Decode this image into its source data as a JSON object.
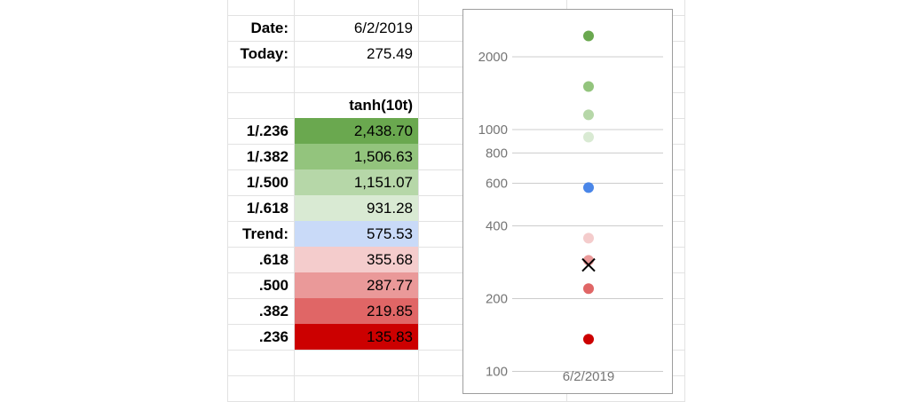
{
  "sheet": {
    "date_label": "Date:",
    "date_value": "6/2/2019",
    "today_label": "Today:",
    "today_value": "275.49",
    "column_header": "tanh(10t)",
    "rows": [
      {
        "label": "1/.236",
        "value": "2,438.70",
        "bg": "#6aa84f",
        "fg": "#000000"
      },
      {
        "label": "1/.382",
        "value": "1,506.63",
        "bg": "#93c47d",
        "fg": "#000000"
      },
      {
        "label": "1/.500",
        "value": "1,151.07",
        "bg": "#b6d7a8",
        "fg": "#000000"
      },
      {
        "label": "1/.618",
        "value": "931.28",
        "bg": "#d9ead3",
        "fg": "#000000"
      },
      {
        "label": "Trend:",
        "value": "575.53",
        "bg": "#c9daf8",
        "fg": "#000000"
      },
      {
        "label": ".618",
        "value": "355.68",
        "bg": "#f4cccc",
        "fg": "#000000"
      },
      {
        "label": ".500",
        "value": "287.77",
        "bg": "#ea9999",
        "fg": "#000000"
      },
      {
        "label": ".382",
        "value": "219.85",
        "bg": "#e06666",
        "fg": "#000000"
      },
      {
        "label": ".236",
        "value": "135.83",
        "bg": "#cc0000",
        "fg": "#000000"
      }
    ]
  },
  "chart_data": {
    "type": "scatter",
    "x_category": "6/2/2019",
    "y_scale": "log",
    "ylim": [
      90,
      3000
    ],
    "y_ticks": [
      {
        "value": 100,
        "label": "100"
      },
      {
        "value": 200,
        "label": "200"
      },
      {
        "value": 400,
        "label": "400"
      },
      {
        "value": 600,
        "label": "600"
      },
      {
        "value": 800,
        "label": "800"
      },
      {
        "value": 1000,
        "label": "1000"
      },
      {
        "value": 2000,
        "label": "2000"
      }
    ],
    "points": [
      {
        "value": 2438.7,
        "color": "#6aa84f",
        "marker": "circle"
      },
      {
        "value": 1506.63,
        "color": "#93c47d",
        "marker": "circle"
      },
      {
        "value": 1151.07,
        "color": "#b6d7a8",
        "marker": "circle"
      },
      {
        "value": 931.28,
        "color": "#d9ead3",
        "marker": "circle"
      },
      {
        "value": 575.53,
        "color": "#4a86e8",
        "marker": "circle"
      },
      {
        "value": 355.68,
        "color": "#f4cccc",
        "marker": "circle"
      },
      {
        "value": 287.77,
        "color": "#ea9999",
        "marker": "circle"
      },
      {
        "value": 219.85,
        "color": "#e06666",
        "marker": "circle"
      },
      {
        "value": 135.83,
        "color": "#cc0000",
        "marker": "circle"
      },
      {
        "value": 275.49,
        "color": "#000000",
        "marker": "x"
      }
    ],
    "grid": true,
    "legend": "none"
  }
}
